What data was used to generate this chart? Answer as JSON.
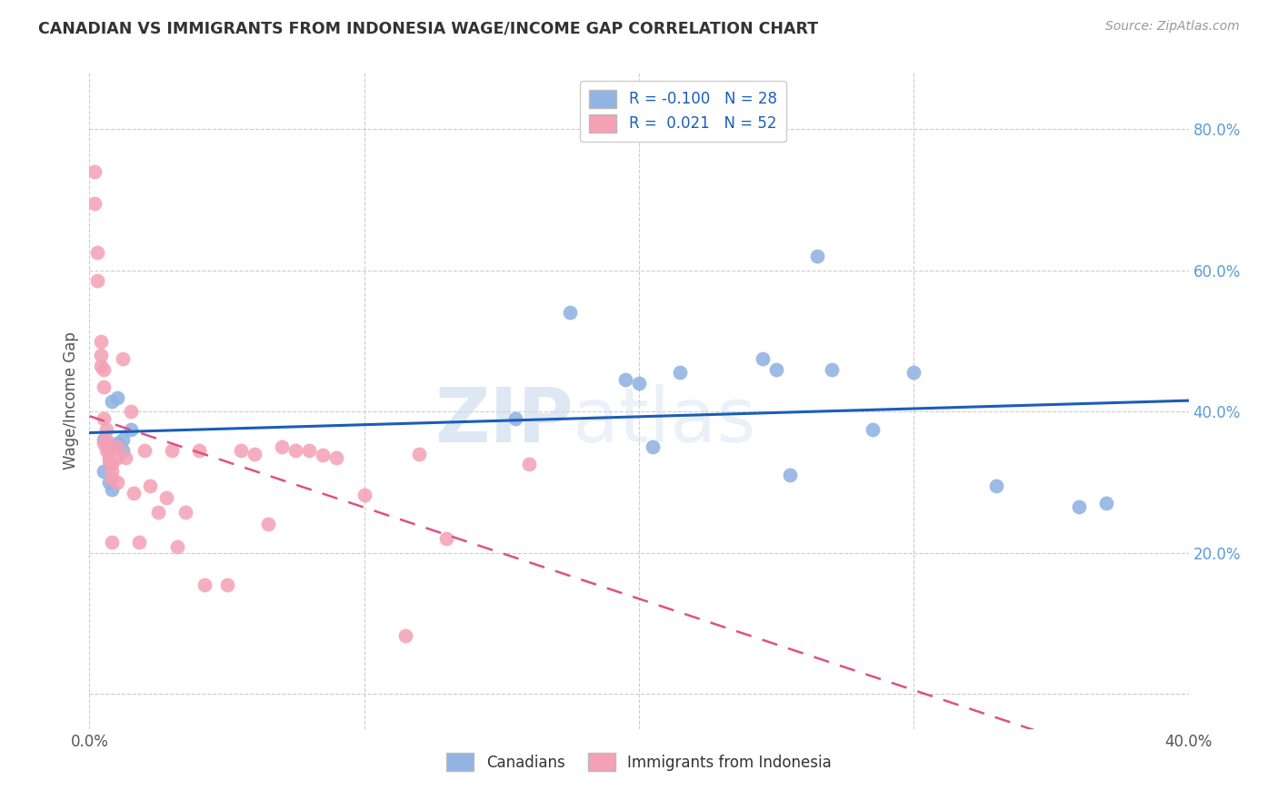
{
  "title": "CANADIAN VS IMMIGRANTS FROM INDONESIA WAGE/INCOME GAP CORRELATION CHART",
  "source": "Source: ZipAtlas.com",
  "ylabel": "Wage/Income Gap",
  "xlim": [
    0.0,
    0.4
  ],
  "ylim": [
    -0.05,
    0.88
  ],
  "ytick_labels": [
    "",
    "20.0%",
    "40.0%",
    "60.0%",
    "80.0%"
  ],
  "ytick_vals": [
    0.0,
    0.2,
    0.4,
    0.6,
    0.8
  ],
  "xtick_labels": [
    "0.0%",
    "",
    "",
    "",
    "40.0%"
  ],
  "xtick_vals": [
    0.0,
    0.1,
    0.2,
    0.3,
    0.4
  ],
  "canadian_R": "-0.100",
  "canadian_N": "28",
  "indonesian_R": "0.021",
  "indonesian_N": "52",
  "canadian_color": "#92b4e3",
  "indonesian_color": "#f4a0b5",
  "trendline_canadian_color": "#1a5eb8",
  "trendline_indonesian_color": "#e05080",
  "watermark_zip": "ZIP",
  "watermark_atlas": "atlas",
  "legend_label_canadian": "Canadians",
  "legend_label_indonesian": "Immigrants from Indonesia",
  "canadians_x": [
    0.005,
    0.007,
    0.01,
    0.012,
    0.005,
    0.007,
    0.008,
    0.01,
    0.012,
    0.008,
    0.01,
    0.015,
    0.155,
    0.175,
    0.195,
    0.2,
    0.205,
    0.215,
    0.245,
    0.25,
    0.255,
    0.265,
    0.27,
    0.285,
    0.3,
    0.33,
    0.36,
    0.37
  ],
  "canadians_y": [
    0.36,
    0.345,
    0.355,
    0.36,
    0.315,
    0.3,
    0.29,
    0.35,
    0.345,
    0.415,
    0.42,
    0.375,
    0.39,
    0.54,
    0.445,
    0.44,
    0.35,
    0.455,
    0.475,
    0.46,
    0.31,
    0.62,
    0.46,
    0.375,
    0.455,
    0.295,
    0.265,
    0.27
  ],
  "indonesians_x": [
    0.002,
    0.002,
    0.003,
    0.003,
    0.004,
    0.004,
    0.004,
    0.005,
    0.005,
    0.005,
    0.005,
    0.006,
    0.006,
    0.006,
    0.007,
    0.007,
    0.007,
    0.008,
    0.008,
    0.008,
    0.008,
    0.01,
    0.01,
    0.01,
    0.012,
    0.013,
    0.015,
    0.016,
    0.018,
    0.02,
    0.022,
    0.025,
    0.028,
    0.03,
    0.032,
    0.035,
    0.04,
    0.042,
    0.05,
    0.055,
    0.06,
    0.065,
    0.07,
    0.075,
    0.08,
    0.085,
    0.09,
    0.1,
    0.115,
    0.12,
    0.13,
    0.16
  ],
  "indonesians_y": [
    0.74,
    0.695,
    0.625,
    0.585,
    0.5,
    0.48,
    0.465,
    0.46,
    0.435,
    0.39,
    0.355,
    0.375,
    0.36,
    0.345,
    0.345,
    0.335,
    0.33,
    0.325,
    0.315,
    0.305,
    0.215,
    0.35,
    0.335,
    0.3,
    0.475,
    0.335,
    0.4,
    0.285,
    0.215,
    0.345,
    0.295,
    0.258,
    0.278,
    0.345,
    0.208,
    0.258,
    0.345,
    0.155,
    0.155,
    0.345,
    0.34,
    0.24,
    0.35,
    0.345,
    0.345,
    0.338,
    0.335,
    0.282,
    0.082,
    0.34,
    0.22,
    0.325
  ]
}
